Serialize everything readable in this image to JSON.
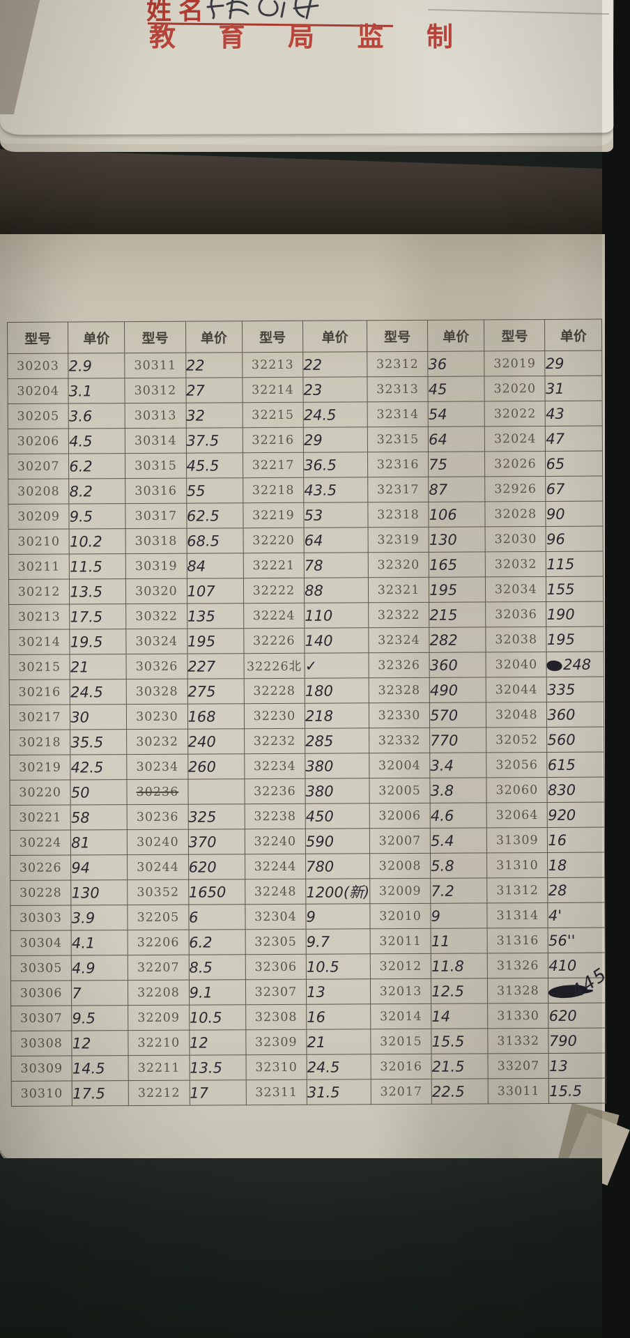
{
  "top_sheet": {
    "name_label": "姓名",
    "issuer_line": "教 育 局 监 制"
  },
  "table": {
    "header_model": "型号",
    "header_price": "单价",
    "column_pairs": 5,
    "rows": [
      [
        {
          "m": "30203",
          "p": "2.9"
        },
        {
          "m": "30311",
          "p": "22"
        },
        {
          "m": "32213",
          "p": "22"
        },
        {
          "m": "32312",
          "p": "36"
        },
        {
          "m": "32019",
          "p": "29"
        }
      ],
      [
        {
          "m": "30204",
          "p": "3.1"
        },
        {
          "m": "30312",
          "p": "27"
        },
        {
          "m": "32214",
          "p": "23"
        },
        {
          "m": "32313",
          "p": "45"
        },
        {
          "m": "32020",
          "p": "31"
        }
      ],
      [
        {
          "m": "30205",
          "p": "3.6"
        },
        {
          "m": "30313",
          "p": "32"
        },
        {
          "m": "32215",
          "p": "24.5"
        },
        {
          "m": "32314",
          "p": "54"
        },
        {
          "m": "32022",
          "p": "43"
        }
      ],
      [
        {
          "m": "30206",
          "p": "4.5"
        },
        {
          "m": "30314",
          "p": "37.5"
        },
        {
          "m": "32216",
          "p": "29"
        },
        {
          "m": "32315",
          "p": "64"
        },
        {
          "m": "32024",
          "p": "47"
        }
      ],
      [
        {
          "m": "30207",
          "p": "6.2"
        },
        {
          "m": "30315",
          "p": "45.5"
        },
        {
          "m": "32217",
          "p": "36.5"
        },
        {
          "m": "32316",
          "p": "75"
        },
        {
          "m": "32026",
          "p": "65"
        }
      ],
      [
        {
          "m": "30208",
          "p": "8.2"
        },
        {
          "m": "30316",
          "p": "55"
        },
        {
          "m": "32218",
          "p": "43.5"
        },
        {
          "m": "32317",
          "p": "87"
        },
        {
          "m": "32926",
          "p": "67"
        }
      ],
      [
        {
          "m": "30209",
          "p": "9.5"
        },
        {
          "m": "30317",
          "p": "62.5"
        },
        {
          "m": "32219",
          "p": "53"
        },
        {
          "m": "32318",
          "p": "106"
        },
        {
          "m": "32028",
          "p": "90"
        }
      ],
      [
        {
          "m": "30210",
          "p": "10.2"
        },
        {
          "m": "30318",
          "p": "68.5"
        },
        {
          "m": "32220",
          "p": "64"
        },
        {
          "m": "32319",
          "p": "130"
        },
        {
          "m": "32030",
          "p": "96"
        }
      ],
      [
        {
          "m": "30211",
          "p": "11.5"
        },
        {
          "m": "30319",
          "p": "84"
        },
        {
          "m": "32221",
          "p": "78"
        },
        {
          "m": "32320",
          "p": "165"
        },
        {
          "m": "32032",
          "p": "115"
        }
      ],
      [
        {
          "m": "30212",
          "p": "13.5"
        },
        {
          "m": "30320",
          "p": "107"
        },
        {
          "m": "32222",
          "p": "88"
        },
        {
          "m": "32321",
          "p": "195"
        },
        {
          "m": "32034",
          "p": "155"
        }
      ],
      [
        {
          "m": "30213",
          "p": "17.5"
        },
        {
          "m": "30322",
          "p": "135"
        },
        {
          "m": "32224",
          "p": "110"
        },
        {
          "m": "32322",
          "p": "215"
        },
        {
          "m": "32036",
          "p": "190"
        }
      ],
      [
        {
          "m": "30214",
          "p": "19.5"
        },
        {
          "m": "30324",
          "p": "195"
        },
        {
          "m": "32226",
          "p": "140"
        },
        {
          "m": "32324",
          "p": "282"
        },
        {
          "m": "32038",
          "p": "195"
        }
      ],
      [
        {
          "m": "30215",
          "p": "21"
        },
        {
          "m": "30326",
          "p": "227"
        },
        {
          "m": "32226北",
          "p": "✓"
        },
        {
          "m": "32326",
          "p": "360"
        },
        {
          "m": "32040",
          "p": "248",
          "f": "scribble-before"
        }
      ],
      [
        {
          "m": "30216",
          "p": "24.5"
        },
        {
          "m": "30328",
          "p": "275"
        },
        {
          "m": "32228",
          "p": "180"
        },
        {
          "m": "32328",
          "p": "490"
        },
        {
          "m": "32044",
          "p": "335"
        }
      ],
      [
        {
          "m": "30217",
          "p": "30"
        },
        {
          "m": "30230",
          "p": "168"
        },
        {
          "m": "32230",
          "p": "218"
        },
        {
          "m": "32330",
          "p": "570"
        },
        {
          "m": "32048",
          "p": "360"
        }
      ],
      [
        {
          "m": "30218",
          "p": "35.5"
        },
        {
          "m": "30232",
          "p": "240"
        },
        {
          "m": "32232",
          "p": "285"
        },
        {
          "m": "32332",
          "p": "770"
        },
        {
          "m": "32052",
          "p": "560"
        }
      ],
      [
        {
          "m": "30219",
          "p": "42.5"
        },
        {
          "m": "30234",
          "p": "260"
        },
        {
          "m": "32234",
          "p": "380"
        },
        {
          "m": "32004",
          "p": "3.4"
        },
        {
          "m": "32056",
          "p": "615"
        }
      ],
      [
        {
          "m": "30220",
          "p": "50"
        },
        {
          "m": "30236",
          "p": "",
          "f": "struck-model"
        },
        {
          "m": "32236",
          "p": "380"
        },
        {
          "m": "32005",
          "p": "3.8"
        },
        {
          "m": "32060",
          "p": "830"
        }
      ],
      [
        {
          "m": "30221",
          "p": "58"
        },
        {
          "m": "30236",
          "p": "325"
        },
        {
          "m": "32238",
          "p": "450"
        },
        {
          "m": "32006",
          "p": "4.6"
        },
        {
          "m": "32064",
          "p": "920"
        }
      ],
      [
        {
          "m": "30224",
          "p": "81"
        },
        {
          "m": "30240",
          "p": "370"
        },
        {
          "m": "32240",
          "p": "590"
        },
        {
          "m": "32007",
          "p": "5.4"
        },
        {
          "m": "31309",
          "p": "16"
        }
      ],
      [
        {
          "m": "30226",
          "p": "94"
        },
        {
          "m": "30244",
          "p": "620"
        },
        {
          "m": "32244",
          "p": "780"
        },
        {
          "m": "32008",
          "p": "5.8"
        },
        {
          "m": "31310",
          "p": "18"
        }
      ],
      [
        {
          "m": "30228",
          "p": "130"
        },
        {
          "m": "30352",
          "p": "1650"
        },
        {
          "m": "32248",
          "p": "1200(新)"
        },
        {
          "m": "32009",
          "p": "7.2"
        },
        {
          "m": "31312",
          "p": "28"
        }
      ],
      [
        {
          "m": "30303",
          "p": "3.9"
        },
        {
          "m": "32205",
          "p": "6"
        },
        {
          "m": "32304",
          "p": "9"
        },
        {
          "m": "32010",
          "p": "9"
        },
        {
          "m": "31314",
          "p": "4'"
        }
      ],
      [
        {
          "m": "30304",
          "p": "4.1"
        },
        {
          "m": "32206",
          "p": "6.2"
        },
        {
          "m": "32305",
          "p": "9.7"
        },
        {
          "m": "32011",
          "p": "11"
        },
        {
          "m": "31316",
          "p": "56''"
        }
      ],
      [
        {
          "m": "30305",
          "p": "4.9"
        },
        {
          "m": "32207",
          "p": "8.5"
        },
        {
          "m": "32306",
          "p": "10.5"
        },
        {
          "m": "32012",
          "p": "11.8"
        },
        {
          "m": "31326",
          "p": "410"
        }
      ],
      [
        {
          "m": "30306",
          "p": "7"
        },
        {
          "m": "32208",
          "p": "9.1"
        },
        {
          "m": "32307",
          "p": "13"
        },
        {
          "m": "32013",
          "p": "12.5"
        },
        {
          "m": "31328",
          "p": "",
          "f": "blot"
        }
      ],
      [
        {
          "m": "30307",
          "p": "9.5"
        },
        {
          "m": "32209",
          "p": "10.5"
        },
        {
          "m": "32308",
          "p": "16"
        },
        {
          "m": "32014",
          "p": "14"
        },
        {
          "m": "31330",
          "p": "620"
        }
      ],
      [
        {
          "m": "30308",
          "p": "12"
        },
        {
          "m": "32210",
          "p": "12"
        },
        {
          "m": "32309",
          "p": "21"
        },
        {
          "m": "32015",
          "p": "15.5"
        },
        {
          "m": "31332",
          "p": "790"
        }
      ],
      [
        {
          "m": "30309",
          "p": "14.5"
        },
        {
          "m": "32211",
          "p": "13.5"
        },
        {
          "m": "32310",
          "p": "24.5"
        },
        {
          "m": "32016",
          "p": "21.5"
        },
        {
          "m": "33207",
          "p": "13"
        }
      ],
      [
        {
          "m": "30310",
          "p": "17.5"
        },
        {
          "m": "32212",
          "p": "17"
        },
        {
          "m": "32311",
          "p": "31.5"
        },
        {
          "m": "32017",
          "p": "22.5"
        },
        {
          "m": "33011",
          "p": "15.5"
        }
      ]
    ]
  },
  "annotations": {
    "check_mark": "✓",
    "side_note": "445"
  },
  "colors": {
    "stamp_red": "#b8443a",
    "handwriting_ink": "#2a2933",
    "printed_grey": "#5a5649",
    "paper": "#cdc9ba",
    "desk_dark": "#1c221e"
  }
}
